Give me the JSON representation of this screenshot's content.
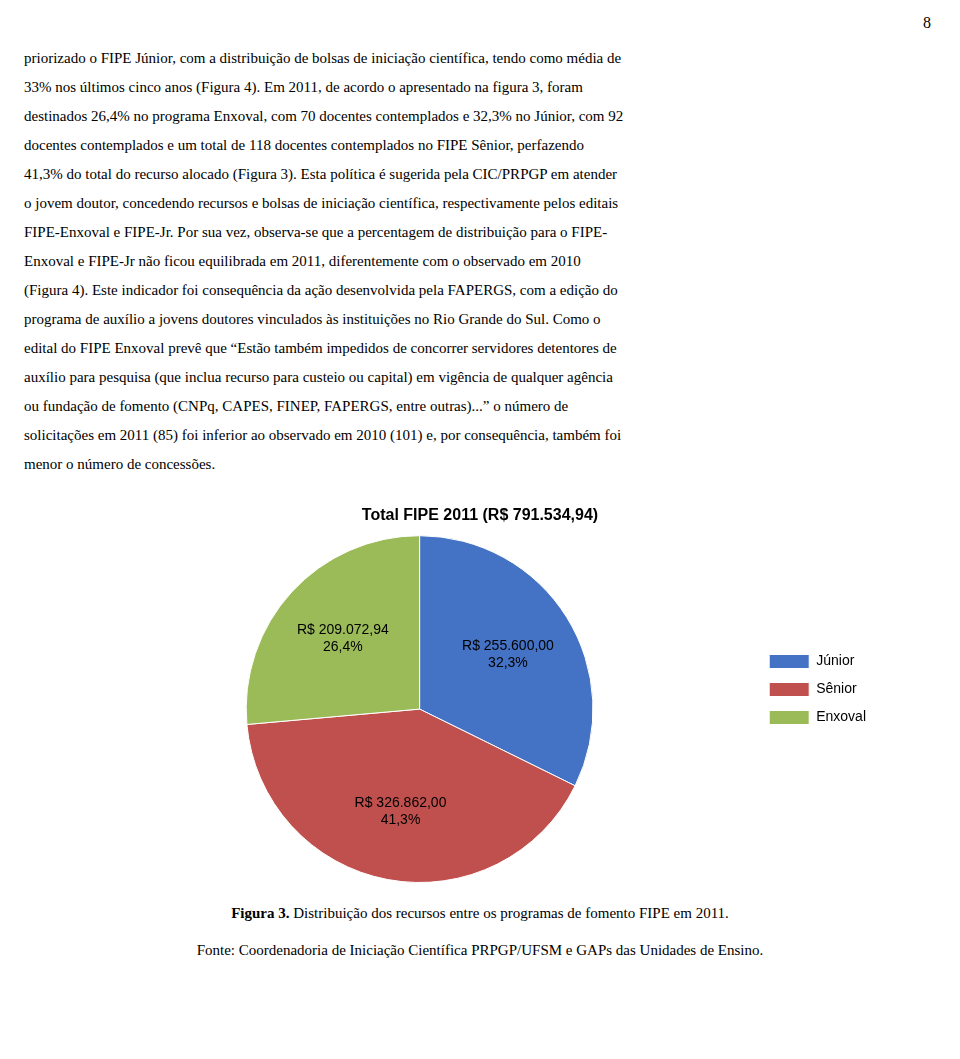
{
  "page_number": "8",
  "text_lines": [
    "priorizado o FIPE Júnior, com a distribuição de bolsas de iniciação científica, tendo como média de",
    "33% nos últimos cinco anos (Figura 4). Em 2011, de acordo o apresentado na figura 3, foram",
    "destinados 26,4% no programa Enxoval, com 70 docentes contemplados e 32,3% no Júnior, com 92",
    "docentes contemplados e um total de 118 docentes contemplados no FIPE Sênior, perfazendo",
    "41,3% do total do recurso alocado (Figura 3). Esta política é sugerida pela CIC/PRPGP em atender",
    "o jovem doutor, concedendo recursos e bolsas de iniciação científica, respectivamente pelos editais",
    "FIPE-Enxoval e FIPE-Jr. Por sua vez, observa-se que a percentagem de distribuição para o FIPE-",
    "Enxoval e FIPE-Jr não ficou equilibrada em 2011, diferentemente com o observado em 2010",
    "(Figura 4). Este indicador foi consequência da ação desenvolvida pela FAPERGS, com a edição do",
    "programa de auxílio a jovens doutores vinculados às instituições no Rio Grande do Sul. Como o",
    "edital do FIPE Enxoval prevê que “Estão também impedidos de concorrer servidores detentores de",
    "auxílio para pesquisa (que inclua recurso para custeio ou capital) em vigência de qualquer agência",
    "ou fundação de fomento (CNPq, CAPES, FINEP, FAPERGS, entre outras)...” o número de",
    "solicitações em 2011 (85) foi inferior ao observado em 2010 (101) e, por consequência, também foi",
    "menor o número de concessões."
  ],
  "chart_data": {
    "type": "pie",
    "title": "Total FIPE 2011 (R$ 791.534,94)",
    "categories": [
      "Júnior",
      "Sênior",
      "Enxoval"
    ],
    "values": [
      255600.0,
      326862.0,
      209072.94
    ],
    "value_labels": [
      [
        "R$ 255.600,00",
        "32,3%"
      ],
      [
        "R$ 326.862,00",
        "41,3%"
      ],
      [
        "R$ 209.072,94",
        "26,4%"
      ]
    ],
    "colors": [
      "#4472C4",
      "#C0504D",
      "#9BBB59"
    ],
    "data_labels": true,
    "legend": "right"
  },
  "caption_bold": "Figura 3.",
  "caption_text": " Distribuição dos recursos entre os programas de fomento FIPE em 2011.",
  "source_text": "Fonte: Coordenadoria de Iniciação Científica PRPGP/UFSM e GAPs das Unidades de Ensino."
}
